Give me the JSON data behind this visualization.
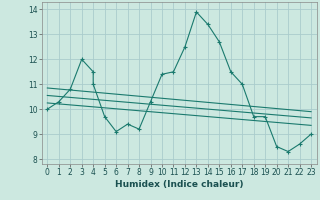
{
  "xlabel": "Humidex (Indice chaleur)",
  "background_color": "#cce8e0",
  "grid_color": "#aacccc",
  "line_color": "#1a7a6e",
  "xlim": [
    -0.5,
    23.5
  ],
  "ylim": [
    7.8,
    14.3
  ],
  "xticks": [
    0,
    1,
    2,
    3,
    4,
    5,
    6,
    7,
    8,
    9,
    10,
    11,
    12,
    13,
    14,
    15,
    16,
    17,
    18,
    19,
    20,
    21,
    22,
    23
  ],
  "yticks": [
    8,
    9,
    10,
    11,
    12,
    13,
    14
  ],
  "curve1_x": [
    0,
    1,
    2,
    3,
    4,
    4,
    5,
    6,
    7,
    8,
    9,
    10,
    11,
    12,
    13,
    14,
    15,
    16,
    17,
    18,
    19,
    20,
    21,
    22,
    23
  ],
  "curve1_y": [
    10.0,
    10.3,
    10.8,
    12.0,
    11.5,
    11.0,
    9.7,
    9.1,
    9.4,
    9.2,
    10.3,
    11.4,
    11.5,
    12.5,
    13.9,
    13.4,
    12.7,
    11.5,
    11.0,
    9.7,
    9.7,
    8.5,
    8.3,
    8.6,
    9.0
  ],
  "line2_x": [
    0,
    23
  ],
  "line2_y": [
    10.85,
    9.9
  ],
  "line3_x": [
    0,
    23
  ],
  "line3_y": [
    10.55,
    9.65
  ],
  "line4_x": [
    0,
    23
  ],
  "line4_y": [
    10.25,
    9.35
  ]
}
